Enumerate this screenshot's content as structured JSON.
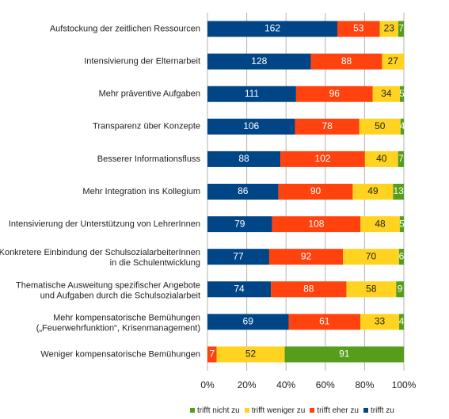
{
  "colors": {
    "trifft_zu": "#004586",
    "trifft_eher_zu": "#ff420e",
    "trifft_weniger_zu": "#ffd320",
    "trifft_nicht_zu": "#579d1c"
  },
  "legend": [
    {
      "name": "trifft nicht zu",
      "color": "#579d1c"
    },
    {
      "name": "trifft weniger zu",
      "color": "#ffd320"
    },
    {
      "name": "trifft eher zu",
      "color": "#ff420e"
    },
    {
      "name": "trifft zu",
      "color": "#004586"
    }
  ],
  "chart_data": {
    "type": "bar",
    "orientation": "horizontal",
    "stacking": "percent",
    "legend_position": "bottom",
    "grid": true,
    "xlim": [
      0,
      100
    ],
    "xticks": [
      "0%",
      "20%",
      "40%",
      "60%",
      "80%",
      "100%"
    ],
    "categories": [
      [
        "Aufstockung der zeitlichen Ressourcen"
      ],
      [
        "Intensivierung der Elternarbeit"
      ],
      [
        "Mehr präventive Aufgaben"
      ],
      [
        "Transparenz über Konzepte"
      ],
      [
        "Besserer Informationsfluss"
      ],
      [
        "Mehr Integration ins Kollegium"
      ],
      [
        "Intensivierung der Unterstützung von LehrerInnen"
      ],
      [
        "Konkretere Einbindung der SchulsozialarbeiterInnen",
        "in die Schulentwicklung"
      ],
      [
        "Thematische Ausweitung spezifischer Angebote",
        "und Aufgaben durch die Schulsozialarbeit"
      ],
      [
        "Mehr kompensatorische Bemühungen",
        "(„Feuerwehrfunktion“, Krisenmanagement)"
      ],
      [
        "Weniger kompensatorische Bemühungen"
      ]
    ],
    "series": [
      {
        "name": "trifft zu",
        "color": "#004586",
        "label_color": "#ffffff",
        "values": [
          162,
          128,
          111,
          106,
          88,
          86,
          79,
          77,
          74,
          69,
          0
        ]
      },
      {
        "name": "trifft eher zu",
        "color": "#ff420e",
        "label_color": "#ffffff",
        "values": [
          53,
          88,
          96,
          78,
          102,
          90,
          108,
          92,
          88,
          61,
          7
        ]
      },
      {
        "name": "trifft weniger zu",
        "color": "#ffd320",
        "label_color": "#222222",
        "values": [
          23,
          27,
          34,
          50,
          40,
          49,
          48,
          70,
          58,
          33,
          52
        ]
      },
      {
        "name": "trifft nicht zu",
        "color": "#579d1c",
        "label_color": "#ffffff",
        "values": [
          7,
          0,
          5,
          4,
          7,
          13,
          5,
          6,
          9,
          4,
          91
        ]
      }
    ]
  }
}
